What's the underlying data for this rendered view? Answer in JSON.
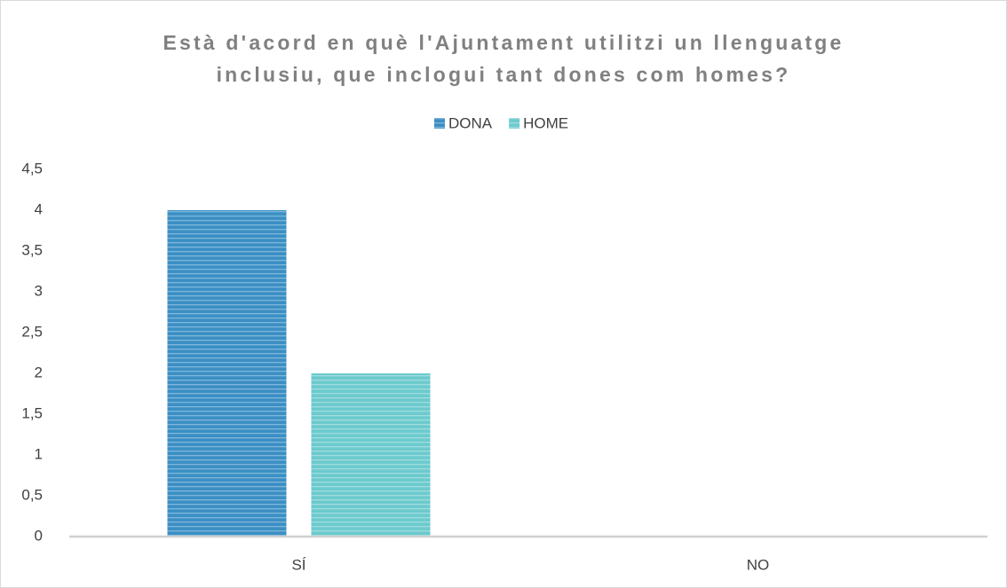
{
  "chart_data": {
    "type": "bar",
    "title": [
      "Està d'acord en què l'Ajuntament utilitzi un llenguatge",
      "inclusiu, que inclogui tant dones com homes?"
    ],
    "categories": [
      "SÍ",
      "NO"
    ],
    "series": [
      {
        "name": "DONA",
        "color": "#3b8fc4",
        "values": [
          4,
          0
        ]
      },
      {
        "name": "HOME",
        "color": "#6ccacd",
        "values": [
          2,
          0
        ]
      }
    ],
    "ylim": [
      0,
      4.5
    ],
    "yticks": [
      0,
      {
        "value": 0.5,
        "label": "0,5"
      },
      1,
      {
        "value": 1.5,
        "label": "1,5"
      },
      2,
      {
        "value": 2.5,
        "label": "2,5"
      },
      3,
      {
        "value": 3.5,
        "label": "3,5"
      },
      4,
      {
        "value": 4.5,
        "label": "4,5"
      }
    ],
    "grid": false,
    "legend": "top"
  }
}
